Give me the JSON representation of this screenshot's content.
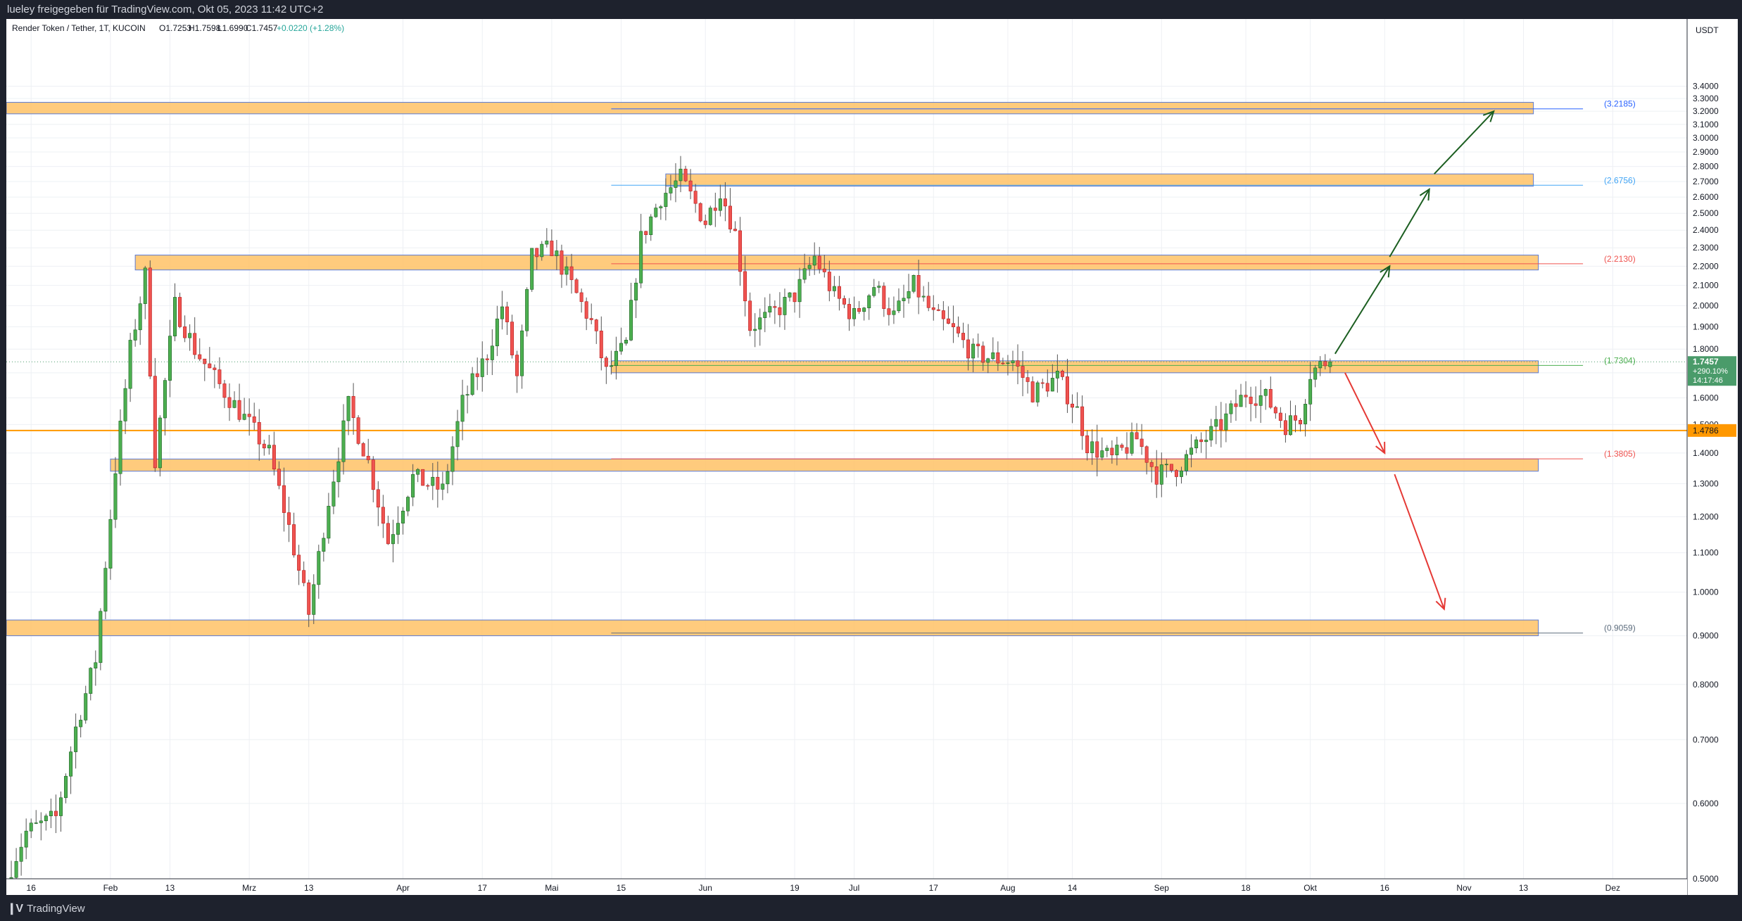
{
  "header": {
    "published_line": "lueley freigegeben für TradingView.com, Okt 05, 2023 11:42 UTC+2"
  },
  "footer": {
    "logo_text": "TradingView"
  },
  "legend": {
    "symbol_line": "Render Token / Tether, 1T, KUCOIN",
    "open": "O1.7253",
    "high": "H1.7598",
    "low": "L1.6990",
    "close": "C1.7457",
    "change": "+0.0220 (+1.28%)"
  },
  "colors": {
    "up": "#26a69a",
    "up_body": "#4caf50",
    "down": "#ef5350",
    "zone_fill": "#ffc266",
    "zone_border": "#5b7bd5",
    "hline_orange": "#ff9800",
    "arrow_up": "#1b5e20",
    "arrow_down": "#e53935",
    "grid": "#eef0f4",
    "axis_text": "#131722",
    "price_tag_green": "#4a9b6a",
    "price_tag_orange": "#ff9800"
  },
  "chart_data": {
    "type": "candlestick",
    "title": "Render Token / Tether, 1T, KUCOIN",
    "y_axis": {
      "unit": "USDT",
      "scale": "log",
      "ylim": [
        0.5,
        4.0
      ],
      "ticks": [
        "3.4000",
        "3.3000",
        "3.2000",
        "3.1000",
        "3.0000",
        "2.9000",
        "2.8000",
        "2.7000",
        "2.6000",
        "2.5000",
        "2.4000",
        "2.3000",
        "2.2000",
        "2.1000",
        "2.0000",
        "1.9000",
        "1.8000",
        "1.7000",
        "1.6000",
        "1.5000",
        "1.4000",
        "1.3000",
        "1.2000",
        "1.1000",
        "1.0000",
        "0.9000",
        "0.8000",
        "0.7000",
        "0.6000",
        "0.5000"
      ]
    },
    "x_axis": {
      "range": [
        "2023-01-11",
        "2023-12-16"
      ],
      "ticks": [
        {
          "date": "2023-01-16",
          "label": "16"
        },
        {
          "date": "2023-02-01",
          "label": "Feb"
        },
        {
          "date": "2023-02-13",
          "label": "13"
        },
        {
          "date": "2023-03-01",
          "label": "Mrz"
        },
        {
          "date": "2023-03-13",
          "label": "13"
        },
        {
          "date": "2023-04-01",
          "label": "Apr"
        },
        {
          "date": "2023-04-17",
          "label": "17"
        },
        {
          "date": "2023-05-01",
          "label": "Mai"
        },
        {
          "date": "2023-05-15",
          "label": "15"
        },
        {
          "date": "2023-06-01",
          "label": "Jun"
        },
        {
          "date": "2023-06-19",
          "label": "19"
        },
        {
          "date": "2023-07-01",
          "label": "Jul"
        },
        {
          "date": "2023-07-17",
          "label": "17"
        },
        {
          "date": "2023-08-01",
          "label": "Aug"
        },
        {
          "date": "2023-08-14",
          "label": "14"
        },
        {
          "date": "2023-09-01",
          "label": "Sep"
        },
        {
          "date": "2023-09-18",
          "label": "18"
        },
        {
          "date": "2023-10-01",
          "label": "Okt"
        },
        {
          "date": "2023-10-16",
          "label": "16"
        },
        {
          "date": "2023-11-01",
          "label": "Nov"
        },
        {
          "date": "2023-11-13",
          "label": "13"
        },
        {
          "date": "2023-12-01",
          "label": "Dez"
        }
      ]
    },
    "price_path": [
      [
        "2023-01-12",
        0.5
      ],
      [
        "2023-01-16",
        0.56
      ],
      [
        "2023-01-22",
        0.58
      ],
      [
        "2023-01-26",
        0.72
      ],
      [
        "2023-01-30",
        0.85
      ],
      [
        "2023-02-03",
        1.35
      ],
      [
        "2023-02-06",
        1.8
      ],
      [
        "2023-02-09",
        2.15
      ],
      [
        "2023-02-11",
        1.38
      ],
      [
        "2023-02-15",
        2.0
      ],
      [
        "2023-02-19",
        1.8
      ],
      [
        "2023-02-24",
        1.65
      ],
      [
        "2023-03-02",
        1.5
      ],
      [
        "2023-03-06",
        1.4
      ],
      [
        "2023-03-10",
        1.17
      ],
      [
        "2023-03-14",
        0.95
      ],
      [
        "2023-03-18",
        1.25
      ],
      [
        "2023-03-22",
        1.57
      ],
      [
        "2023-03-26",
        1.37
      ],
      [
        "2023-03-30",
        1.13
      ],
      [
        "2023-04-04",
        1.32
      ],
      [
        "2023-04-10",
        1.28
      ],
      [
        "2023-04-14",
        1.58
      ],
      [
        "2023-04-19",
        1.78
      ],
      [
        "2023-04-22",
        2.0
      ],
      [
        "2023-04-25",
        1.68
      ],
      [
        "2023-04-28",
        2.25
      ],
      [
        "2023-05-02",
        2.3
      ],
      [
        "2023-05-06",
        2.1
      ],
      [
        "2023-05-10",
        1.92
      ],
      [
        "2023-05-13",
        1.7
      ],
      [
        "2023-05-17",
        1.82
      ],
      [
        "2023-05-20",
        2.35
      ],
      [
        "2023-05-24",
        2.6
      ],
      [
        "2023-05-28",
        2.72
      ],
      [
        "2023-06-02",
        2.45
      ],
      [
        "2023-06-05",
        2.65
      ],
      [
        "2023-06-08",
        2.38
      ],
      [
        "2023-06-11",
        1.9
      ],
      [
        "2023-06-15",
        1.95
      ],
      [
        "2023-06-20",
        2.05
      ],
      [
        "2023-06-24",
        2.25
      ],
      [
        "2023-06-28",
        2.05
      ],
      [
        "2023-07-02",
        1.95
      ],
      [
        "2023-07-06",
        2.1
      ],
      [
        "2023-07-10",
        1.95
      ],
      [
        "2023-07-14",
        2.1
      ],
      [
        "2023-07-18",
        1.95
      ],
      [
        "2023-07-22",
        1.88
      ],
      [
        "2023-07-26",
        1.78
      ],
      [
        "2023-07-30",
        1.76
      ],
      [
        "2023-08-03",
        1.75
      ],
      [
        "2023-08-07",
        1.62
      ],
      [
        "2023-08-12",
        1.68
      ],
      [
        "2023-08-16",
        1.55
      ],
      [
        "2023-08-18",
        1.43
      ],
      [
        "2023-08-23",
        1.38
      ],
      [
        "2023-08-28",
        1.45
      ],
      [
        "2023-09-01",
        1.33
      ],
      [
        "2023-09-05",
        1.35
      ],
      [
        "2023-09-09",
        1.42
      ],
      [
        "2023-09-14",
        1.5
      ],
      [
        "2023-09-19",
        1.62
      ],
      [
        "2023-09-23",
        1.6
      ],
      [
        "2023-09-27",
        1.5
      ],
      [
        "2023-09-30",
        1.53
      ],
      [
        "2023-10-02",
        1.7
      ],
      [
        "2023-10-05",
        1.7457
      ]
    ],
    "last_candle": {
      "date": "2023-10-05",
      "open": 1.7253,
      "high": 1.7598,
      "low": 1.699,
      "close": 1.7457
    },
    "zones": [
      {
        "label": "(3.2185)",
        "level": 3.2185,
        "low": 3.18,
        "high": 3.27,
        "start": "2023-01-11",
        "end": "2023-11-15",
        "label_color": "#2962ff"
      },
      {
        "label": "(2.6756)",
        "level": 2.6756,
        "low": 2.67,
        "high": 2.75,
        "start": "2023-05-24",
        "end": "2023-11-15",
        "label_color": "#42a5f5"
      },
      {
        "label": "(2.2130)",
        "level": 2.213,
        "low": 2.18,
        "high": 2.26,
        "start": "2023-02-06",
        "end": "2023-11-16",
        "label_color": "#ef5350"
      },
      {
        "label": "(1.7304)",
        "level": 1.7304,
        "low": 1.7,
        "high": 1.75,
        "start": "2023-05-13",
        "end": "2023-11-16",
        "label_color": "#4caf50"
      },
      {
        "label": "(1.3805)",
        "level": 1.3805,
        "low": 1.34,
        "high": 1.38,
        "start": "2023-02-01",
        "end": "2023-11-16",
        "label_color": "#ef5350"
      },
      {
        "label": "(0.9059)",
        "level": 0.9059,
        "low": 0.9,
        "high": 0.935,
        "start": "2023-01-11",
        "end": "2023-11-16",
        "label_color": "#5d6d7e"
      }
    ],
    "horizontal_lines": [
      {
        "level": 1.4786,
        "label": "1.4786",
        "color": "#ff9800"
      }
    ],
    "arrows": [
      {
        "from": [
          "2023-10-06",
          1.78
        ],
        "to": [
          "2023-10-17",
          2.2
        ],
        "direction": "up"
      },
      {
        "from": [
          "2023-10-17",
          2.25
        ],
        "to": [
          "2023-10-25",
          2.65
        ],
        "direction": "up"
      },
      {
        "from": [
          "2023-10-26",
          2.75
        ],
        "to": [
          "2023-11-07",
          3.2
        ],
        "direction": "up"
      },
      {
        "from": [
          "2023-10-08",
          1.7
        ],
        "to": [
          "2023-10-16",
          1.4
        ],
        "direction": "down"
      },
      {
        "from": [
          "2023-10-18",
          1.33
        ],
        "to": [
          "2023-10-28",
          0.96
        ],
        "direction": "down"
      }
    ],
    "price_tag": {
      "price": "1.7457",
      "change_pct": "+290.10%",
      "countdown": "14:17:46"
    },
    "grid": true
  }
}
